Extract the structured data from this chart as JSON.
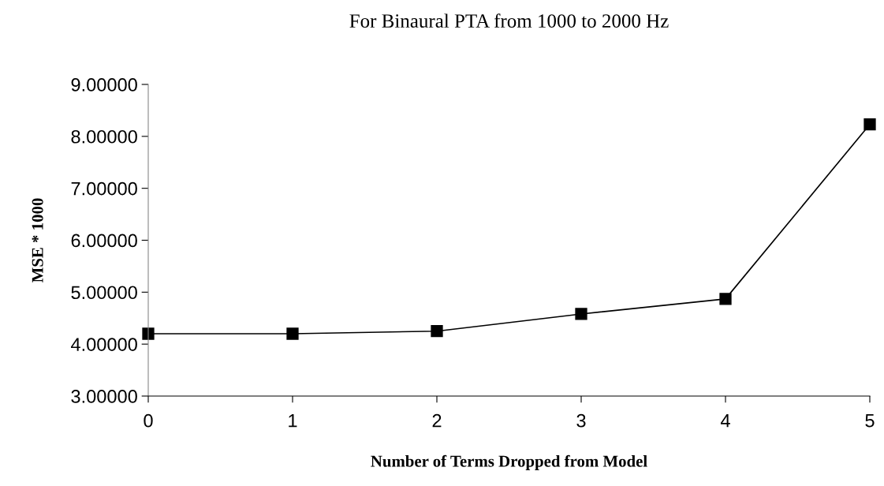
{
  "chart_data": {
    "type": "line",
    "title": "For Binaural PTA from 1000 to 2000 Hz",
    "xlabel": "Number of Terms Dropped from Model",
    "ylabel": "MSE * 1000",
    "x": [
      0,
      1,
      2,
      3,
      4,
      5
    ],
    "series": [
      {
        "color": "#000000",
        "values": [
          4.2,
          4.2,
          4.25,
          4.58,
          4.87,
          8.23
        ]
      }
    ],
    "xlim": [
      0,
      5
    ],
    "xticks": [
      0,
      1,
      2,
      3,
      4,
      5
    ],
    "ylim": [
      3,
      9
    ],
    "yticks": [
      {
        "value": 3,
        "label": "3.00000"
      },
      {
        "value": 4,
        "label": "4.00000"
      },
      {
        "value": 5,
        "label": "5.00000"
      },
      {
        "value": 6,
        "label": "6.00000"
      },
      {
        "value": 7,
        "label": "7.00000"
      },
      {
        "value": 8,
        "label": "8.00000"
      },
      {
        "value": 9,
        "label": "9.00000"
      }
    ],
    "grid": false,
    "legend": false,
    "marker": "square",
    "line_style": "solid"
  }
}
